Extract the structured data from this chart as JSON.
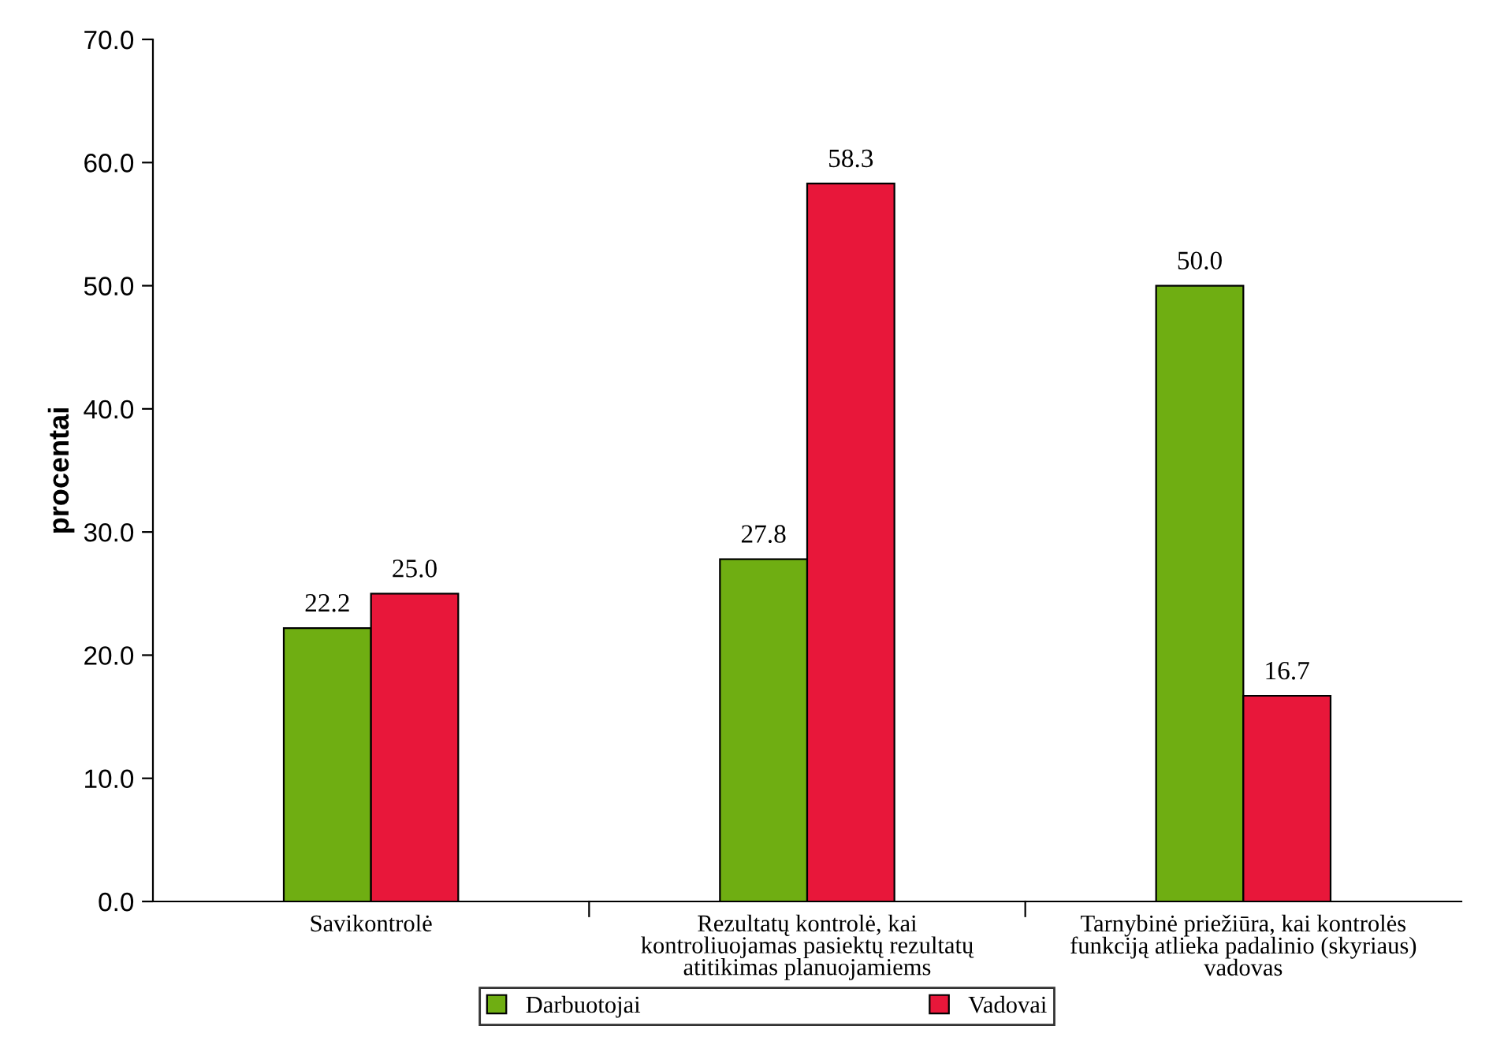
{
  "chart_data": {
    "type": "bar",
    "ylabel": "procentai",
    "categories": [
      "Savikontrolė",
      "Rezultatų kontrolė, kai\nkontroliuojamas pasiektų rezultatų\natitikimas planuojamiems",
      "Tarnybinė priežiūra, kai kontrolės\nfunkciją atlieka padalinio (skyriaus)\nvadovas"
    ],
    "series": [
      {
        "name": "Darbuotojai",
        "color": "#6fae12",
        "values": [
          22.2,
          27.8,
          50.0
        ],
        "value_labels": [
          "22.2",
          "27.8",
          "50.0"
        ]
      },
      {
        "name": "Vadovai",
        "color": "#e8173a",
        "values": [
          25.0,
          58.3,
          16.7
        ],
        "value_labels": [
          "25.0",
          "58.3",
          "16.7"
        ]
      }
    ],
    "ylim": [
      0,
      70
    ],
    "yticks": [
      {
        "value": 0,
        "label": "0.0"
      },
      {
        "value": 10,
        "label": "10.0"
      },
      {
        "value": 20,
        "label": "20.0"
      },
      {
        "value": 30,
        "label": "30.0"
      },
      {
        "value": 40,
        "label": "40.0"
      },
      {
        "value": 50,
        "label": "50.0"
      },
      {
        "value": 60,
        "label": "60.0"
      },
      {
        "value": 70,
        "label": "70.0"
      }
    ],
    "grid": false,
    "legend": "bottom"
  }
}
